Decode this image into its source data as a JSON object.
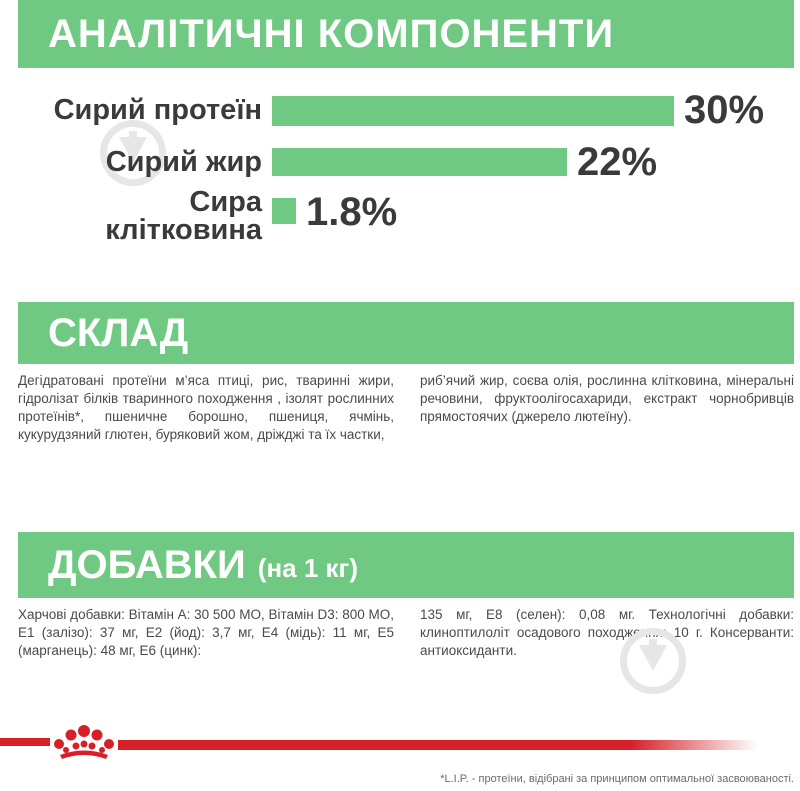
{
  "analytic": {
    "title": "АНАЛІТИЧНІ КОМПОНЕНТИ",
    "rows": [
      {
        "label": "Сирий протеїн",
        "value": "30%",
        "level": 30
      },
      {
        "label": "Сирий жир",
        "value": "22%",
        "level": 22
      },
      {
        "label_line1": "Сира",
        "label_line2": "клітковина",
        "value": "1.8%",
        "level": 1.8
      }
    ]
  },
  "composition": {
    "title": "СКЛАД",
    "text_left": "Дегідратовані протеїни м’яса птиці, рис, тваринні жири, гідролізат білків тваринного походження , ізолят рослинних протеїнів*, пшеничне борошно, пшениця, ячмінь, кукурудзяний глютен, буряковий жом, дріжджі та їх частки,",
    "text_right": "риб’ячий жир, соєва олія, рослинна клітковина, мінеральні речовини, фруктоолігосахариди, екстракт чорнобривців прямостоячих (джерело лютеїну)."
  },
  "additives": {
    "title": "ДОБАВКИ",
    "subtitle": "(на 1 кг)",
    "text_left": "Харчові добавки: Вітамін A: 30 500 МО, Вітамін D3: 800 МО, E1 (залізо): 37 мг, E2 (йод): 3,7 мг, E4 (мідь): 11 мг, E5 (марганець): 48 мг, E6 (цинк):",
    "text_right": "135 мг, E8 (селен): 0,08 мг. Технологічні добавки: клиноптилоліт осадового походження: 10 г. Консерванти: антиоксиданти."
  },
  "footnote": "*L.I.P. - протеїни, відібрані за принципом оптимальної засвоюваності.",
  "colors": {
    "accent": "#6fc982",
    "brand_red": "#d61f26"
  },
  "icons": [
    "watermark-icon",
    "royal-canin-crown-icon"
  ]
}
